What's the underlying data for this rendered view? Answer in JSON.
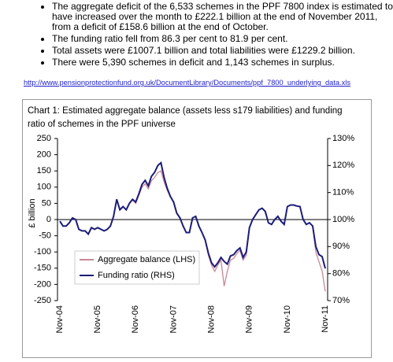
{
  "bullets": [
    "The aggregate deficit of the 6,533 schemes in the PPF 7800 index is estimated to have increased over the month to £222.1 billion at the end of November 2011, from a deficit of £158.6 billion at the end of October.",
    "The funding ratio fell from 86.3 per cent to 81.9 per cent.",
    "Total assets were £1007.1 billion and total liabilities were £1229.2 billion.",
    "There were 5,390 schemes in deficit and 1,143 schemes in surplus."
  ],
  "link": "http://www.pensionprotectionfund.org.uk/DocumentLibrary/Documents/ppf_7800_underlying_data.xls",
  "chart_data": {
    "type": "line",
    "title": "Chart 1: Estimated aggregate balance (assets less s179 liabilities) and funding ratio of schemes in the PPF universe",
    "ylabel": "£ billion",
    "categories": [
      "Nov-04",
      null,
      null,
      null,
      null,
      null,
      null,
      null,
      null,
      null,
      null,
      null,
      "Nov-05",
      null,
      null,
      null,
      null,
      null,
      null,
      null,
      null,
      null,
      null,
      null,
      "Nov-06",
      null,
      null,
      null,
      null,
      null,
      null,
      null,
      null,
      null,
      null,
      null,
      "Nov-07",
      null,
      null,
      null,
      null,
      null,
      null,
      null,
      null,
      null,
      null,
      null,
      "Nov-08",
      null,
      null,
      null,
      null,
      null,
      null,
      null,
      null,
      null,
      null,
      null,
      "Nov-09",
      null,
      null,
      null,
      null,
      null,
      null,
      null,
      null,
      null,
      null,
      null,
      "Nov-10",
      null,
      null,
      null,
      null,
      null,
      null,
      null,
      null,
      null,
      null,
      null,
      "Nov-11"
    ],
    "series": [
      {
        "name": "Aggregate balance (LHS)",
        "color": "#c98897",
        "values": [
          -5,
          -20,
          -20,
          -10,
          5,
          0,
          -30,
          -35,
          -35,
          -45,
          -25,
          -30,
          -25,
          -30,
          -35,
          -30,
          -20,
          10,
          60,
          30,
          40,
          30,
          50,
          60,
          50,
          75,
          100,
          110,
          95,
          120,
          130,
          145,
          150,
          115,
          90,
          70,
          55,
          20,
          5,
          -20,
          -40,
          -40,
          5,
          10,
          -20,
          -40,
          -65,
          -110,
          -140,
          -160,
          -140,
          -125,
          -205,
          -160,
          -125,
          -120,
          -105,
          -95,
          -125,
          -110,
          -25,
          0,
          15,
          30,
          35,
          25,
          -10,
          -15,
          0,
          10,
          -5,
          -15,
          40,
          45,
          45,
          42,
          40,
          0,
          -15,
          -10,
          -20,
          -100,
          -130,
          -158.6,
          -222.1
        ]
      },
      {
        "name": "Funding ratio (RHS)",
        "color": "#1c1c78",
        "axis": "y2",
        "values": [
          99.4,
          97.6,
          97.6,
          98.8,
          100.6,
          100,
          96.4,
          95.8,
          95.8,
          94.6,
          97,
          96.4,
          97,
          96.4,
          95.8,
          96.4,
          97.6,
          101.2,
          107.5,
          103.6,
          104.8,
          103.6,
          106,
          107.5,
          106.5,
          109.5,
          113,
          114.5,
          112.5,
          116,
          117.5,
          120,
          121,
          115.5,
          111.5,
          108.5,
          106.5,
          102.4,
          100.6,
          97.6,
          95.2,
          95.2,
          100.6,
          101.2,
          97.6,
          95.2,
          92.5,
          87.5,
          84,
          82.5,
          84,
          86,
          84.5,
          83.5,
          86.5,
          87,
          88.5,
          89.5,
          86,
          88,
          97,
          100,
          101.8,
          103.6,
          104.2,
          103,
          98.8,
          98.2,
          100,
          101.2,
          99.4,
          98.2,
          104.8,
          105.4,
          105.4,
          105,
          104.8,
          100,
          98.2,
          98.8,
          97.6,
          90,
          87,
          86.3,
          81.9
        ]
      }
    ],
    "ylim": [
      -250,
      250
    ],
    "yticks": [
      -250,
      -200,
      -150,
      -100,
      -50,
      0,
      50,
      100,
      150,
      200,
      250
    ],
    "y2lim": [
      70,
      130
    ],
    "y2ticks": [
      {
        "value": 70,
        "label": "70%"
      },
      {
        "value": 80,
        "label": "80%"
      },
      {
        "value": 90,
        "label": "90%"
      },
      {
        "value": 100,
        "label": "100%"
      },
      {
        "value": 110,
        "label": "110%"
      },
      {
        "value": 120,
        "label": "120%"
      },
      {
        "value": 130,
        "label": "130%"
      }
    ],
    "grid": false,
    "legend": "lower left"
  }
}
